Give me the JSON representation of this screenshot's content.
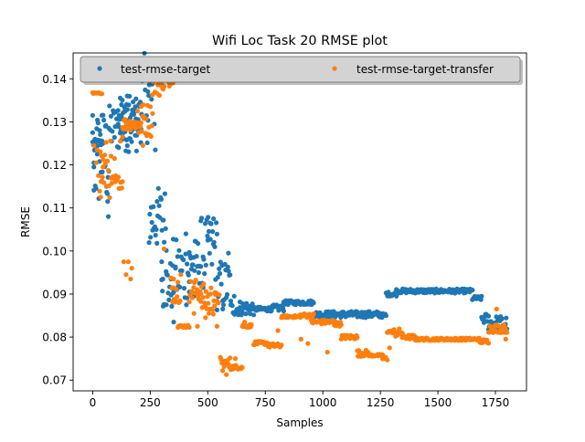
{
  "chart_data": {
    "type": "scatter",
    "title": "Wifi Loc Task 20 RMSE plot",
    "xlabel": "Samples",
    "ylabel": "RMSE",
    "xlim": [
      -85,
      1885
    ],
    "ylim": [
      0.0675,
      0.146
    ],
    "xticks": [
      0,
      250,
      500,
      750,
      1000,
      1250,
      1500,
      1750
    ],
    "xtick_labels": [
      "0",
      "250",
      "500",
      "750",
      "1000",
      "1250",
      "1500",
      "1750"
    ],
    "yticks": [
      0.07,
      0.08,
      0.09,
      0.1,
      0.11,
      0.12,
      0.13,
      0.14
    ],
    "ytick_labels": [
      "0.07",
      "0.08",
      "0.09",
      "0.10",
      "0.11",
      "0.12",
      "0.13",
      "0.14"
    ],
    "grid": false,
    "legend": {
      "placement": "top",
      "columns": 2
    },
    "series": [
      {
        "name": "test-rmse-target",
        "color": "#1f77b4",
        "segments": [
          [
            0,
            40,
            0.124,
            0.126
          ],
          [
            5,
            70,
            0.1095,
            0.1335
          ],
          [
            70,
            200,
            0.123,
            0.134
          ],
          [
            110,
            210,
            0.126,
            0.136
          ],
          [
            200,
            265,
            0.125,
            0.146
          ],
          [
            245,
            320,
            0.1,
            0.115
          ],
          [
            300,
            350,
            0.086,
            0.098
          ],
          [
            350,
            420,
            0.087,
            0.103
          ],
          [
            420,
            470,
            0.092,
            0.103
          ],
          [
            470,
            540,
            0.092,
            0.108
          ],
          [
            540,
            600,
            0.086,
            0.098
          ],
          [
            600,
            640,
            0.085,
            0.088
          ],
          [
            640,
            700,
            0.085,
            0.0885
          ],
          [
            700,
            780,
            0.086,
            0.087
          ],
          [
            780,
            830,
            0.086,
            0.0875
          ],
          [
            830,
            960,
            0.0875,
            0.0885
          ],
          [
            960,
            1250,
            0.0845,
            0.086
          ],
          [
            1250,
            1275,
            0.0845,
            0.0855
          ],
          [
            1275,
            1320,
            0.0895,
            0.0905
          ],
          [
            1320,
            1650,
            0.0902,
            0.0912
          ],
          [
            1650,
            1690,
            0.0885,
            0.0895
          ],
          [
            1690,
            1720,
            0.083,
            0.0855
          ],
          [
            1720,
            1800,
            0.0815,
            0.085
          ]
        ],
        "points": [
          [
            0,
            0.1315
          ],
          [
            0,
            0.1275
          ],
          [
            5,
            0.1205
          ],
          [
            5,
            0.1195
          ],
          [
            20,
            0.1225
          ],
          [
            30,
            0.128
          ],
          [
            40,
            0.1315
          ],
          [
            45,
            0.125
          ],
          [
            55,
            0.129
          ],
          [
            60,
            0.115
          ],
          [
            65,
            0.1115
          ],
          [
            68,
            0.108
          ],
          [
            105,
            0.129
          ],
          [
            115,
            0.1315
          ],
          [
            125,
            0.134
          ],
          [
            150,
            0.136
          ],
          [
            185,
            0.1335
          ],
          [
            205,
            0.129
          ],
          [
            215,
            0.1395
          ],
          [
            240,
            0.137
          ],
          [
            262,
            0.142
          ],
          [
            268,
            0.1295
          ],
          [
            272,
            0.1235
          ],
          [
            280,
            0.1115
          ],
          [
            300,
            0.0975
          ],
          [
            305,
            0.0935
          ],
          [
            320,
            0.0875
          ],
          [
            340,
            0.0935
          ],
          [
            352,
            0.0835
          ],
          [
            360,
            0.096
          ],
          [
            370,
            0.0915
          ],
          [
            405,
            0.104
          ],
          [
            410,
            0.097
          ],
          [
            420,
            0.0905
          ],
          [
            440,
            0.0895
          ],
          [
            460,
            0.0965
          ],
          [
            480,
            0.0915
          ],
          [
            500,
            0.1025
          ],
          [
            510,
            0.1065
          ],
          [
            525,
            0.1075
          ],
          [
            545,
            0.0895
          ],
          [
            565,
            0.0865
          ],
          [
            590,
            0.0995
          ],
          [
            615,
            0.0895
          ]
        ]
      },
      {
        "name": "test-rmse-target-transfer",
        "color": "#ff7f0e",
        "segments": [
          [
            0,
            40,
            0.1365,
            0.1368
          ],
          [
            30,
            80,
            0.112,
            0.126
          ],
          [
            80,
            130,
            0.1145,
            0.1175
          ],
          [
            130,
            210,
            0.128,
            0.131
          ],
          [
            210,
            260,
            0.1265,
            0.1345
          ],
          [
            260,
            290,
            0.136,
            0.1415
          ],
          [
            290,
            310,
            0.1375,
            0.1395
          ],
          [
            330,
            350,
            0.138,
            0.1395
          ],
          [
            340,
            380,
            0.088,
            0.0945
          ],
          [
            370,
            420,
            0.0822,
            0.0828
          ],
          [
            420,
            470,
            0.088,
            0.0935
          ],
          [
            470,
            530,
            0.085,
            0.0925
          ],
          [
            530,
            550,
            0.0875,
            0.0905
          ],
          [
            555,
            600,
            0.0712,
            0.0755
          ],
          [
            600,
            650,
            0.0725,
            0.0735
          ],
          [
            650,
            690,
            0.0822,
            0.083
          ],
          [
            700,
            760,
            0.0782,
            0.079
          ],
          [
            760,
            820,
            0.0775,
            0.0785
          ],
          [
            820,
            900,
            0.0845,
            0.085
          ],
          [
            900,
            960,
            0.0845,
            0.0855
          ],
          [
            950,
            1050,
            0.083,
            0.084
          ],
          [
            1050,
            1080,
            0.0825,
            0.0835
          ],
          [
            1080,
            1150,
            0.0795,
            0.0805
          ],
          [
            1150,
            1200,
            0.0755,
            0.077
          ],
          [
            1200,
            1260,
            0.0755,
            0.076
          ],
          [
            1260,
            1280,
            0.0745,
            0.0755
          ],
          [
            1280,
            1300,
            0.081,
            0.0815
          ],
          [
            1300,
            1345,
            0.08,
            0.082
          ],
          [
            1345,
            1400,
            0.0795,
            0.0805
          ],
          [
            1400,
            1680,
            0.0792,
            0.0798
          ],
          [
            1680,
            1720,
            0.0785,
            0.0795
          ],
          [
            1720,
            1800,
            0.081,
            0.083
          ]
        ],
        "points": [
          [
            5,
            0.1245
          ],
          [
            15,
            0.1205
          ],
          [
            20,
            0.1235
          ],
          [
            25,
            0.1175
          ],
          [
            35,
            0.1125
          ],
          [
            45,
            0.1195
          ],
          [
            95,
            0.1215
          ],
          [
            100,
            0.1175
          ],
          [
            120,
            0.1255
          ],
          [
            130,
            0.1265
          ],
          [
            135,
            0.0975
          ],
          [
            145,
            0.0945
          ],
          [
            155,
            0.0975
          ],
          [
            165,
            0.0935
          ],
          [
            170,
            0.096
          ],
          [
            195,
            0.1325
          ],
          [
            200,
            0.1275
          ],
          [
            218,
            0.1245
          ],
          [
            310,
            0.1005
          ],
          [
            352,
            0.0935
          ],
          [
            358,
            0.0885
          ],
          [
            383,
            0.0945
          ],
          [
            440,
            0.0855
          ],
          [
            455,
            0.0825
          ],
          [
            490,
            0.0845
          ],
          [
            505,
            0.0855
          ],
          [
            540,
            0.0825
          ],
          [
            620,
            0.075
          ],
          [
            660,
            0.0835
          ],
          [
            805,
            0.0815
          ],
          [
            905,
            0.0795
          ],
          [
            935,
            0.0785
          ],
          [
            1020,
            0.0765
          ],
          [
            1290,
            0.0775
          ],
          [
            1755,
            0.0865
          ],
          [
            1795,
            0.0795
          ]
        ]
      }
    ]
  }
}
